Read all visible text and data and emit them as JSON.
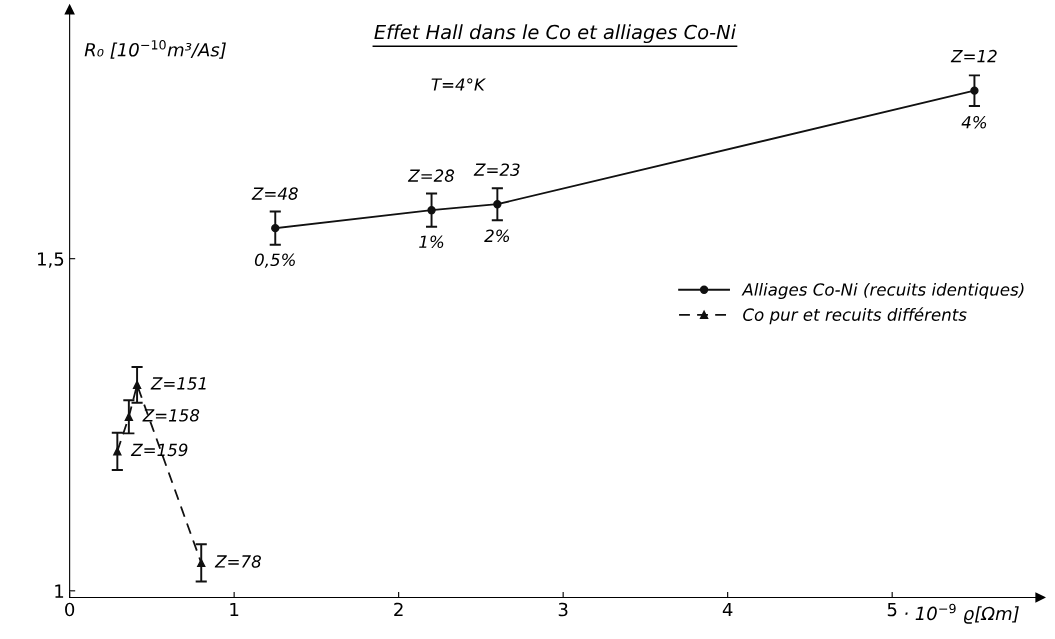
{
  "chart_data": {
    "type": "line",
    "title": "Effet Hall dans le Co et alliages Co-Ni",
    "xlabel": "· 10$^{−9}$ ϱ[Ωm]",
    "ylabel": "R₀ [10$^{−10}$m³/As]",
    "xlim": [
      0,
      5.9
    ],
    "ylim": [
      0.99,
      1.875
    ],
    "xticks": [
      0,
      1,
      2,
      3,
      4,
      5
    ],
    "yticks": [
      1,
      {
        "value": 1.5,
        "label": "1,5"
      }
    ],
    "grid": false,
    "legend": "right",
    "series": [
      {
        "name": "Alliages Co-Ni (recuits identiques)",
        "color": "#111111",
        "marker": "circle",
        "line_style": "solid",
        "x": [
          1.25,
          2.2,
          2.6,
          5.5
        ],
        "values": [
          1.546,
          1.573,
          1.582,
          1.753
        ],
        "errors": [
          0.025,
          0.025,
          0.024,
          0.023
        ]
      },
      {
        "name": "Co pur et recuits différents",
        "color": "#111111",
        "marker": "triangle",
        "line_style": "dashed",
        "x": [
          0.29,
          0.36,
          0.41,
          0.8
        ],
        "values": [
          1.21,
          1.262,
          1.31,
          1.042
        ],
        "errors": [
          0.028,
          0.025,
          0.027,
          0.028
        ]
      }
    ],
    "annotations": [
      "T=4°K",
      {
        "text": "Z=48",
        "x": 1.25,
        "y": 1.546
      },
      {
        "text": "Z=28",
        "x": 2.2,
        "y": 1.573
      },
      {
        "text": "Z=23",
        "x": 2.6,
        "y": 1.582
      },
      {
        "text": "Z=12",
        "x": 5.5,
        "y": 1.753
      },
      {
        "text": "0,5%",
        "x": 1.25,
        "y": 1.546
      },
      {
        "text": "1%",
        "x": 2.2,
        "y": 1.573
      },
      {
        "text": "2%",
        "x": 2.6,
        "y": 1.582
      },
      {
        "text": "4%",
        "x": 5.5,
        "y": 1.753
      },
      {
        "text": "Z=151",
        "x": 0.41,
        "y": 1.31
      },
      {
        "text": "Z=158",
        "x": 0.36,
        "y": 1.262
      },
      {
        "text": "Z=159",
        "x": 0.29,
        "y": 1.21
      },
      {
        "text": "Z=78",
        "x": 0.8,
        "y": 1.042
      }
    ]
  }
}
